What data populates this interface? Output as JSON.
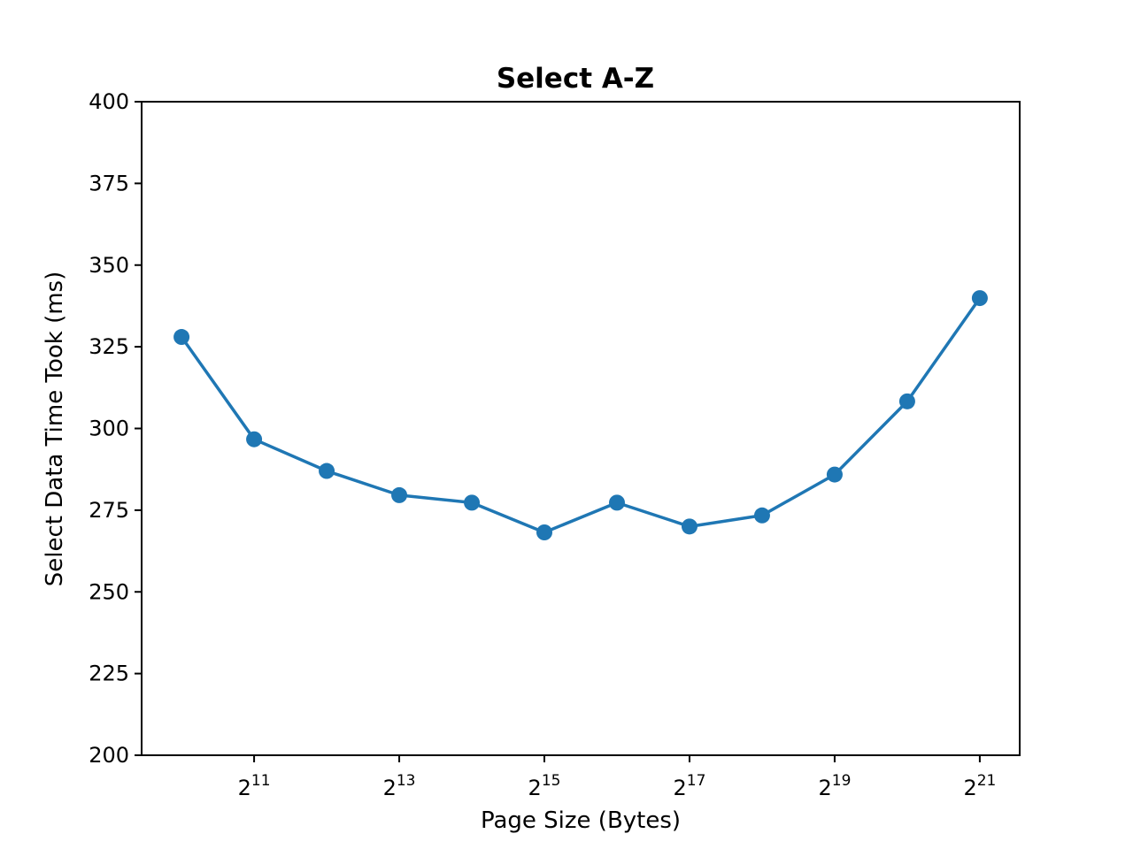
{
  "chart_data": {
    "type": "line",
    "title": "Select A-Z",
    "xlabel": "Page Size (Bytes)",
    "ylabel": "Select Data Time Took (ms)",
    "x_scale": "log2",
    "x": [
      1024,
      2048,
      4096,
      8192,
      16384,
      32768,
      65536,
      131072,
      262144,
      524288,
      1048576,
      2097152
    ],
    "xticks": [
      {
        "base": "2",
        "exp": "11",
        "value": 2048
      },
      {
        "base": "2",
        "exp": "13",
        "value": 8192
      },
      {
        "base": "2",
        "exp": "15",
        "value": 32768
      },
      {
        "base": "2",
        "exp": "17",
        "value": 131072
      },
      {
        "base": "2",
        "exp": "19",
        "value": 524288
      },
      {
        "base": "2",
        "exp": "21",
        "value": 2097152
      }
    ],
    "yticks": [
      "200",
      "225",
      "250",
      "275",
      "300",
      "325",
      "350",
      "375",
      "400"
    ],
    "ylim": [
      200,
      400
    ],
    "grid": false,
    "marker": "circle",
    "color": "#1f77b4",
    "series": [
      {
        "values": [
          328,
          296.7,
          287,
          279.6,
          277.3,
          268.2,
          277.3,
          270,
          273.4,
          285.9,
          308.3,
          339.9
        ]
      }
    ]
  }
}
